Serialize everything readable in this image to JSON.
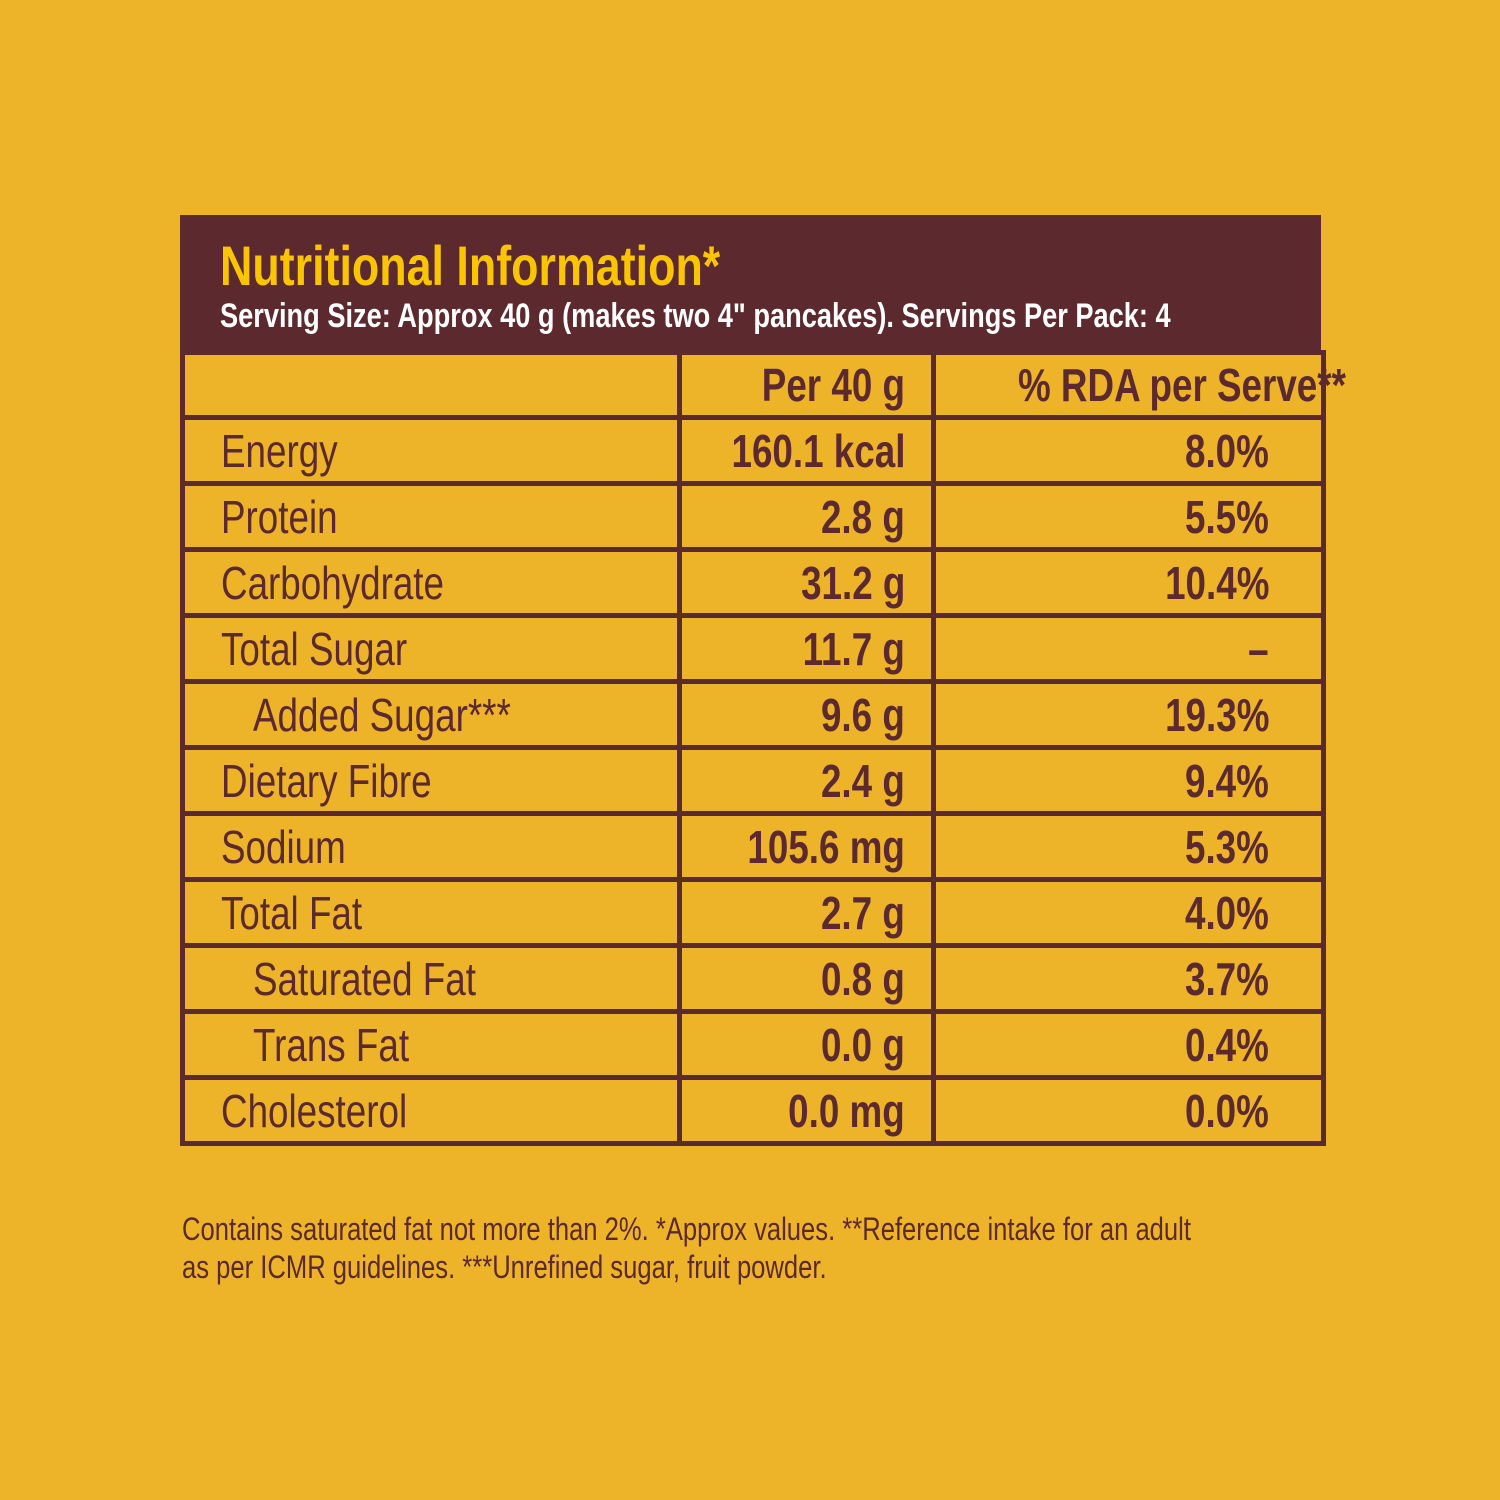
{
  "header": {
    "title": "Nutritional Information*",
    "subtitle": "Serving Size: Approx 40 g (makes two 4\" pancakes). Servings Per Pack: 4"
  },
  "columns": [
    "",
    "Per 40 g",
    "% RDA per Serve**"
  ],
  "rows": [
    {
      "name": "Energy",
      "per": "160.1 kcal",
      "rda": "8.0%"
    },
    {
      "name": "Protein",
      "per": "2.8 g",
      "rda": "5.5%"
    },
    {
      "name": "Carbohydrate",
      "per": "31.2 g",
      "rda": "10.4%"
    },
    {
      "name": "Total Sugar",
      "per": "11.7 g",
      "rda": "–"
    },
    {
      "name": "Added Sugar***",
      "per": "9.6 g",
      "rda": "19.3%"
    },
    {
      "name": "Dietary Fibre",
      "per": "2.4 g",
      "rda": "9.4%"
    },
    {
      "name": "Sodium",
      "per": "105.6 mg",
      "rda": "5.3%"
    },
    {
      "name": "Total Fat",
      "per": "2.7 g",
      "rda": "4.0%"
    },
    {
      "name": "Saturated Fat",
      "per": "0.8 g",
      "rda": "3.7%"
    },
    {
      "name": "Trans Fat",
      "per": "0.0 g",
      "rda": "0.4%"
    },
    {
      "name": "Cholesterol",
      "per": "0.0 mg",
      "rda": "0.0%"
    }
  ],
  "footnote": {
    "line1": "Contains saturated fat not more than 2%. *Approx values. **Reference intake for an adult",
    "line2": "as per ICMR guidelines. ***Unrefined sugar, fruit powder."
  },
  "colors": {
    "background": "#EDB42A",
    "dark": "#5C2A2E",
    "title": "#F9C400"
  }
}
